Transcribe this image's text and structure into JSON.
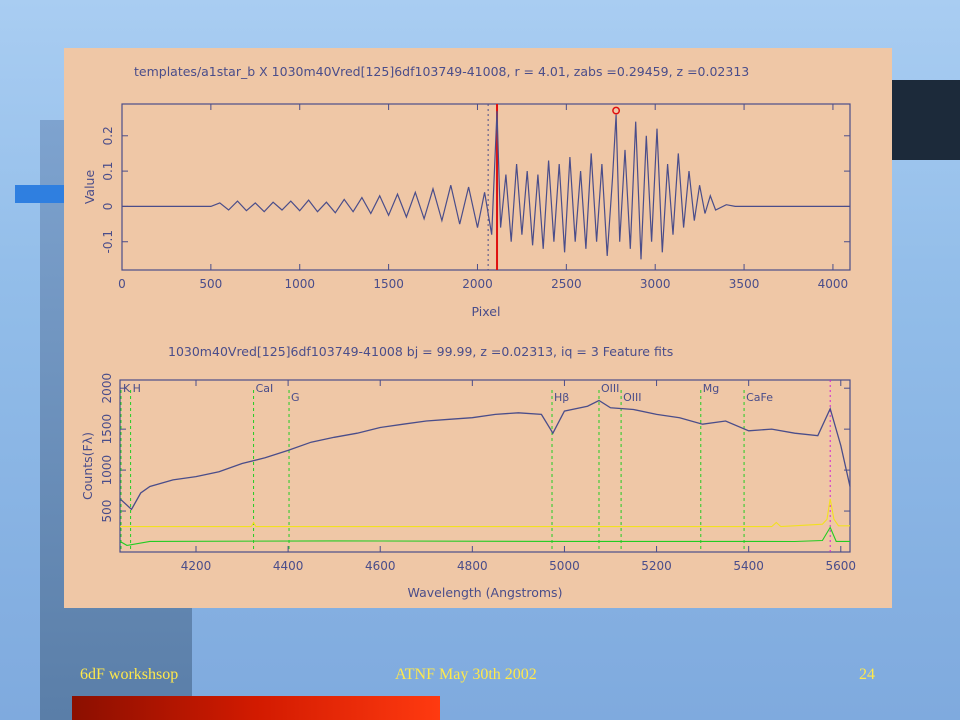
{
  "slide": {
    "footer_left": "6dF workshsop",
    "footer_center": "ATNF May 30th 2002",
    "slide_number": "24"
  },
  "colors": {
    "figure_bg": "#efc7a6",
    "trace": "#4a4d8a",
    "red_line": "#e01010",
    "green_line": "#22cc22",
    "yellow_line": "#f2e020",
    "marker": "#e01010"
  },
  "chart_data": [
    {
      "type": "line",
      "title": "templates/a1star_b X 1030m40Vred[125]6df103749-41008, r =   4.01, zabs =0.29459, z =0.02313",
      "xlabel": "Pixel",
      "ylabel": "Value",
      "xlim": [
        0,
        4096
      ],
      "ylim": [
        -0.18,
        0.29
      ],
      "xticks": [
        0,
        500,
        1000,
        1500,
        2000,
        2500,
        3000,
        3500,
        4000
      ],
      "yticks": [
        -0.1,
        0,
        0.1,
        0.2
      ],
      "ytick_labels": [
        "-0.1",
        "0",
        "0.1",
        "0.2"
      ],
      "vlines": [
        {
          "x": 2060,
          "style": "dotted"
        },
        {
          "x": 2110,
          "style": "solid",
          "color": "red"
        }
      ],
      "peak_marker": {
        "x": 2780,
        "y": 0.26
      },
      "series": [
        {
          "x": [
            0,
            500,
            550,
            600,
            650,
            700,
            750,
            800,
            850,
            900,
            950,
            1000,
            1050,
            1100,
            1150,
            1200,
            1250,
            1300,
            1350,
            1400,
            1450,
            1500,
            1550,
            1600,
            1650,
            1700,
            1750,
            1800,
            1850,
            1900,
            1950,
            2000,
            2040,
            2080,
            2110,
            2130,
            2160,
            2190,
            2220,
            2250,
            2280,
            2310,
            2340,
            2370,
            2400,
            2430,
            2460,
            2490,
            2520,
            2550,
            2580,
            2610,
            2640,
            2670,
            2700,
            2730,
            2760,
            2780,
            2800,
            2830,
            2860,
            2890,
            2920,
            2950,
            2980,
            3010,
            3040,
            3070,
            3100,
            3130,
            3160,
            3190,
            3220,
            3250,
            3280,
            3310,
            3340,
            3400,
            3450,
            4096
          ],
          "values": [
            0,
            0,
            0.01,
            -0.01,
            0.015,
            -0.012,
            0.01,
            -0.015,
            0.012,
            -0.01,
            0.015,
            -0.012,
            0.018,
            -0.015,
            0.012,
            -0.018,
            0.02,
            -0.015,
            0.025,
            -0.02,
            0.03,
            -0.025,
            0.035,
            -0.03,
            0.04,
            -0.035,
            0.05,
            -0.04,
            0.06,
            -0.05,
            0.055,
            -0.06,
            0.04,
            -0.08,
            0.27,
            -0.06,
            0.09,
            -0.1,
            0.12,
            -0.08,
            0.1,
            -0.11,
            0.09,
            -0.12,
            0.13,
            -0.1,
            0.12,
            -0.13,
            0.14,
            -0.1,
            0.1,
            -0.12,
            0.15,
            -0.1,
            0.12,
            -0.14,
            0.08,
            0.26,
            -0.1,
            0.16,
            -0.12,
            0.24,
            -0.15,
            0.2,
            -0.1,
            0.22,
            -0.13,
            0.12,
            -0.08,
            0.15,
            -0.06,
            0.1,
            -0.04,
            0.06,
            -0.02,
            0.03,
            -0.01,
            0.005,
            0,
            0
          ]
        }
      ]
    },
    {
      "type": "line",
      "title": "1030m40Vred[125]6df103749-41008         bj = 99.99, z =0.02313, iq =  3 Feature fits",
      "xlabel": "Wavelength (Angstroms)",
      "ylabel": "Counts(Fλ)",
      "xlim": [
        4035,
        5620
      ],
      "ylim": [
        0,
        2100
      ],
      "xticks": [
        4200,
        4400,
        4600,
        4800,
        5000,
        5200,
        5400,
        5600
      ],
      "yticks": [
        500,
        1000,
        1500,
        2000
      ],
      "features": [
        {
          "label": "K",
          "x": 4025
        },
        {
          "label": "H",
          "x": 4058
        },
        {
          "label": "CaI",
          "x": 4325
        },
        {
          "label": "G",
          "x": 4402
        },
        {
          "label": "Hβ",
          "x": 4973
        },
        {
          "label": "OIII",
          "x": 5075
        },
        {
          "label": "OIII",
          "x": 5123
        },
        {
          "label": "Mg",
          "x": 5296
        },
        {
          "label": "CaFe",
          "x": 5390
        }
      ],
      "sky_line_x": 5577,
      "series": [
        {
          "name": "",
          "x": [
            4035,
            4060,
            4080,
            4100,
            4150,
            4200,
            4250,
            4300,
            4350,
            4400,
            4450,
            4500,
            4550,
            4600,
            4650,
            4700,
            4750,
            4800,
            4850,
            4900,
            4950,
            4975,
            5000,
            5050,
            5075,
            5100,
            5150,
            5200,
            5250,
            5300,
            5350,
            5400,
            5450,
            5500,
            5550,
            5577,
            5600,
            5620
          ],
          "values": [
            650,
            520,
            720,
            800,
            880,
            920,
            980,
            1080,
            1150,
            1240,
            1340,
            1400,
            1450,
            1520,
            1560,
            1600,
            1620,
            1640,
            1680,
            1700,
            1680,
            1450,
            1720,
            1780,
            1850,
            1760,
            1740,
            1680,
            1640,
            1560,
            1600,
            1480,
            1500,
            1450,
            1420,
            1750,
            1300,
            800
          ]
        },
        {
          "name": "",
          "x": [
            4035,
            4320,
            4325,
            4330,
            5450,
            5460,
            5470,
            5560,
            5570,
            5577,
            5585,
            5595,
            5620
          ],
          "values": [
            310,
            310,
            360,
            310,
            310,
            360,
            310,
            340,
            400,
            650,
            400,
            320,
            320
          ]
        },
        {
          "name": "",
          "x": [
            4035,
            4050,
            4100,
            4500,
            5000,
            5500,
            5560,
            5577,
            5590,
            5620
          ],
          "values": [
            130,
            80,
            130,
            135,
            130,
            128,
            140,
            300,
            130,
            130
          ]
        }
      ]
    }
  ]
}
